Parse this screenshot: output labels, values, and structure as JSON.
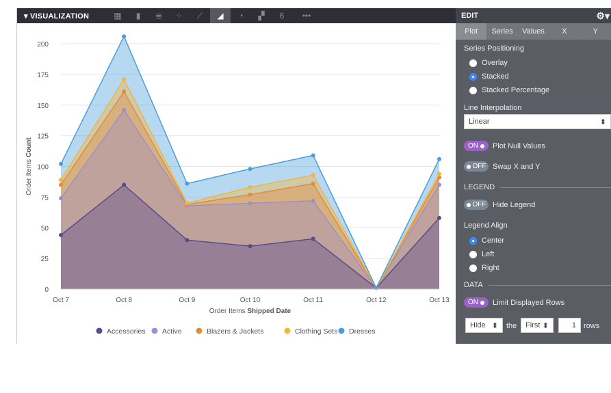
{
  "toolbar": {
    "title": "VISUALIZATION",
    "icons": [
      "table-icon",
      "column-icon",
      "bar-icon",
      "scatter-icon",
      "line-icon",
      "area-icon",
      "pie-icon",
      "map-icon",
      "single-value-icon"
    ],
    "active": "area-icon",
    "single_value_glyph": "6",
    "more": "•••"
  },
  "edit": {
    "title": "EDIT",
    "tabs": [
      "Plot",
      "Series",
      "Values",
      "X",
      "Y"
    ],
    "selected_tab": "Plot",
    "series_positioning": {
      "label": "Series Positioning",
      "options": [
        "Overlay",
        "Stacked",
        "Stacked Percentage"
      ],
      "selected": "Stacked"
    },
    "line_interpolation": {
      "label": "Line Interpolation",
      "value": "Linear"
    },
    "plot_null": {
      "label": "Plot Null Values",
      "state": "ON"
    },
    "swap_xy": {
      "label": "Swap X and Y",
      "state": "OFF"
    },
    "legend_section": "LEGEND",
    "hide_legend": {
      "label": "Hide Legend",
      "state": "OFF"
    },
    "legend_align": {
      "label": "Legend Align",
      "options": [
        "Center",
        "Left",
        "Right"
      ],
      "selected": "Center"
    },
    "data_section": "DATA",
    "limit_rows": {
      "label": "Limit Displayed Rows",
      "state": "ON"
    },
    "row_limit": {
      "action": "Hide",
      "the": "the",
      "position": "First",
      "count": "1",
      "rows": "rows"
    }
  },
  "chart_data": {
    "type": "area",
    "stacked": true,
    "xlabel_prefix": "Order Items ",
    "xlabel_bold": "Shipped Date",
    "ylabel_prefix": "Order Items ",
    "ylabel_bold": "Count",
    "categories": [
      "Oct 7",
      "Oct 8",
      "Oct 9",
      "Oct 10",
      "Oct 11",
      "Oct 12",
      "Oct 13"
    ],
    "ylim": [
      0,
      200
    ],
    "yticks": [
      0,
      25,
      50,
      75,
      100,
      125,
      150,
      175,
      200
    ],
    "grid": true,
    "legend_position": "bottom-center",
    "series": [
      {
        "name": "Accessories",
        "color": "#5b4b8a",
        "values": [
          44,
          85,
          40,
          35,
          41,
          1,
          58
        ]
      },
      {
        "name": "Active",
        "color": "#9d8fcc",
        "values": [
          30,
          61,
          28,
          35,
          31,
          0,
          27
        ]
      },
      {
        "name": "Blazers & Jackets",
        "color": "#e58a3c",
        "values": [
          11,
          15,
          1,
          7,
          14,
          0,
          6
        ]
      },
      {
        "name": "Clothing Sets",
        "color": "#f2b63c",
        "values": [
          4,
          10,
          1,
          6,
          7,
          0,
          3
        ]
      },
      {
        "name": "Dresses",
        "color": "#4a9edb",
        "values": [
          13,
          35,
          16,
          15,
          16,
          0,
          12
        ]
      }
    ]
  }
}
